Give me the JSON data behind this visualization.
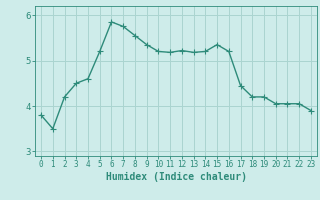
{
  "x": [
    0,
    1,
    2,
    3,
    4,
    5,
    6,
    7,
    8,
    9,
    10,
    11,
    12,
    13,
    14,
    15,
    16,
    17,
    18,
    19,
    20,
    21,
    22,
    23
  ],
  "y": [
    3.8,
    3.5,
    4.2,
    4.5,
    4.6,
    5.2,
    5.85,
    5.75,
    5.55,
    5.35,
    5.2,
    5.18,
    5.22,
    5.18,
    5.2,
    5.35,
    5.2,
    4.45,
    4.2,
    4.2,
    4.05,
    4.05,
    4.05,
    3.9
  ],
  "line_color": "#2e8b7a",
  "marker": "+",
  "marker_color": "#2e8b7a",
  "xlabel": "Humidex (Indice chaleur)",
  "xlim": [
    -0.5,
    23.5
  ],
  "ylim": [
    2.9,
    6.2
  ],
  "yticks": [
    3,
    4,
    5,
    6
  ],
  "xtick_labels": [
    "0",
    "1",
    "2",
    "3",
    "4",
    "5",
    "6",
    "7",
    "8",
    "9",
    "10",
    "11",
    "12",
    "13",
    "14",
    "15",
    "16",
    "17",
    "18",
    "19",
    "20",
    "21",
    "22",
    "23"
  ],
  "bg_color": "#ceecea",
  "grid_color": "#aad4d0",
  "line_width": 1.0,
  "marker_size": 4,
  "font_size_xlabel": 7,
  "font_size_ticks": 5.5
}
